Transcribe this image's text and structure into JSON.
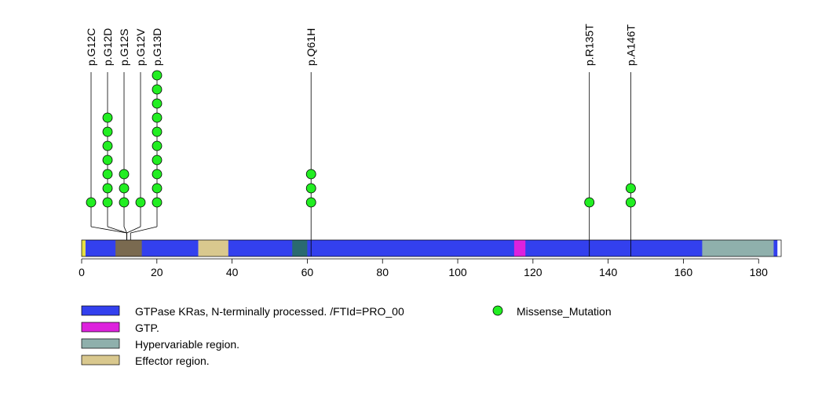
{
  "chart_data": {
    "type": "lollipop",
    "protein_length": 186,
    "xlim": [
      0,
      186
    ],
    "x_ticks": [
      0,
      20,
      40,
      60,
      80,
      100,
      120,
      140,
      160,
      180
    ],
    "domains": [
      {
        "name": "GTPase KRas, N-terminally processed. /FTId=PRO_00",
        "start": 1,
        "end": 185,
        "color": "#3340ee"
      },
      {
        "name": "GTP.",
        "start": 115,
        "end": 118,
        "color": "#dd22dd"
      },
      {
        "name": "Hypervariable region.",
        "start": 165,
        "end": 184,
        "color": "#8fb0ac"
      },
      {
        "name": "Effector region.",
        "start": 31,
        "end": 39,
        "color": "#d9c88e"
      }
    ],
    "overlaps": [
      {
        "start": 0,
        "end": 1,
        "color": "#e6e040"
      },
      {
        "start": 9,
        "end": 16,
        "color": "#7a6a50"
      },
      {
        "start": 56,
        "end": 60,
        "color": "#2a6a70"
      }
    ],
    "mutations": [
      {
        "label": "p.G12C",
        "position": 12,
        "count": 1
      },
      {
        "label": "p.G12D",
        "position": 12,
        "count": 7
      },
      {
        "label": "p.G12S",
        "position": 12,
        "count": 3
      },
      {
        "label": "p.G12V",
        "position": 12,
        "count": 1
      },
      {
        "label": "p.G13D",
        "position": 13,
        "count": 10
      },
      {
        "label": "p.Q61H",
        "position": 61,
        "count": 3
      },
      {
        "label": "p.R135T",
        "position": 135,
        "count": 1
      },
      {
        "label": "p.A146T",
        "position": 146,
        "count": 2
      }
    ],
    "legend": {
      "domain_entries": [
        {
          "label": "GTPase KRas, N-terminally processed. /FTId=PRO_00",
          "color": "#3340ee"
        },
        {
          "label": "GTP.",
          "color": "#dd22dd"
        },
        {
          "label": "Hypervariable region.",
          "color": "#8fb0ac"
        },
        {
          "label": "Effector region.",
          "color": "#d9c88e"
        }
      ],
      "point_entry": {
        "label": "Missense_Mutation",
        "color": "#22ee22"
      }
    }
  }
}
